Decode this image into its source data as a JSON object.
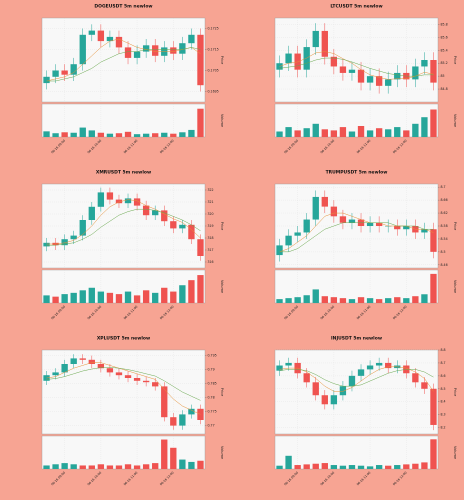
{
  "chart_data": [
    {
      "type": "candlestick",
      "title": "DOGEUSDT 5m newlow",
      "ylabel": "Price",
      "vlabel": "Volume",
      "up_color": "#26a69a",
      "down_color": "#ef5350",
      "grid": true,
      "categories": [
        null,
        null,
        "06-16 09:00",
        null,
        null,
        null,
        "06-16 10:00",
        null,
        null,
        null,
        "06-16 11:00",
        null,
        null,
        null,
        "06-16 12:00",
        null,
        null,
        null
      ],
      "open": [
        0.1699,
        0.1702,
        0.1705,
        0.1703,
        0.1708,
        0.1722,
        0.1724,
        0.1719,
        0.1721,
        0.1716,
        0.1711,
        0.1714,
        0.1717,
        0.1712,
        0.1716,
        0.1713,
        0.1718,
        0.1722
      ],
      "high": [
        0.1705,
        0.1708,
        0.1708,
        0.1711,
        0.1725,
        0.1727,
        0.1727,
        0.1724,
        0.1724,
        0.1719,
        0.1717,
        0.172,
        0.172,
        0.1719,
        0.1719,
        0.1721,
        0.1725,
        0.1725
      ],
      "low": [
        0.1696,
        0.1699,
        0.17,
        0.17,
        0.1705,
        0.1719,
        0.1716,
        0.1716,
        0.1713,
        0.1708,
        0.1708,
        0.1711,
        0.1709,
        0.1709,
        0.171,
        0.171,
        0.1715,
        0.1695
      ],
      "close": [
        0.1702,
        0.1705,
        0.1703,
        0.1708,
        0.1722,
        0.1724,
        0.1719,
        0.1721,
        0.1716,
        0.1711,
        0.1714,
        0.1717,
        0.1712,
        0.1716,
        0.1713,
        0.1718,
        0.1722,
        0.1698
      ],
      "volume": [
        12,
        8,
        10,
        9,
        20,
        14,
        9,
        7,
        8,
        11,
        6,
        7,
        8,
        9,
        7,
        10,
        15,
        60
      ],
      "lines": [
        {
          "color": "#e69138",
          "values": [
            0.17,
            0.1701,
            0.1702,
            0.1704,
            0.1708,
            0.1712,
            0.1716,
            0.1719,
            0.172,
            0.1718,
            0.1716,
            0.1715,
            0.1714,
            0.1714,
            0.1714,
            0.1715,
            0.1716,
            0.1713
          ]
        },
        {
          "color": "#6aa84f",
          "values": [
            0.17,
            0.17,
            0.1701,
            0.1702,
            0.1704,
            0.1706,
            0.1709,
            0.1711,
            0.1713,
            0.1714,
            0.1714,
            0.1715,
            0.1715,
            0.1715,
            0.1715,
            0.1715,
            0.1716,
            0.1715
          ]
        }
      ],
      "ylim": [
        0.169,
        0.173
      ],
      "yticks": [
        0.1695,
        0.1705,
        0.1715,
        0.1725
      ],
      "vlim": [
        0,
        70
      ]
    },
    {
      "type": "candlestick",
      "title": "LTCUSDT 5m newlow",
      "ylabel": "Price",
      "vlabel": "Volume",
      "up_color": "#26a69a",
      "down_color": "#ef5350",
      "grid": true,
      "categories": [
        null,
        null,
        "06-16 09:00",
        null,
        null,
        null,
        "06-16 10:00",
        null,
        null,
        null,
        "06-16 11:00",
        null,
        null,
        null,
        "06-16 12:00",
        null,
        null,
        null
      ],
      "open": [
        85.1,
        85.2,
        85.35,
        85.1,
        85.45,
        85.7,
        85.3,
        85.15,
        85.05,
        85.1,
        84.9,
        85.0,
        84.85,
        84.95,
        85.05,
        84.95,
        85.15,
        85.25
      ],
      "high": [
        85.32,
        85.47,
        85.47,
        85.57,
        85.82,
        85.82,
        85.42,
        85.27,
        85.22,
        85.22,
        85.12,
        85.12,
        85.07,
        85.17,
        85.17,
        85.27,
        85.37,
        85.37
      ],
      "low": [
        84.98,
        85.08,
        84.98,
        84.98,
        85.33,
        85.18,
        85.03,
        84.93,
        84.93,
        84.78,
        84.78,
        84.73,
        84.73,
        84.83,
        84.83,
        84.83,
        85.03,
        84.78
      ],
      "close": [
        85.2,
        85.35,
        85.1,
        85.45,
        85.7,
        85.3,
        85.15,
        85.05,
        85.1,
        84.9,
        85.0,
        84.85,
        84.95,
        85.05,
        84.95,
        85.15,
        85.25,
        84.9
      ],
      "volume": [
        5,
        9,
        6,
        8,
        12,
        7,
        6,
        9,
        5,
        10,
        6,
        8,
        7,
        9,
        6,
        12,
        18,
        25
      ],
      "lines": [
        {
          "color": "#e69138",
          "values": [
            85.15,
            85.2,
            85.22,
            85.28,
            85.36,
            85.38,
            85.35,
            85.27,
            85.2,
            85.1,
            85.02,
            84.98,
            84.95,
            84.96,
            84.96,
            85.0,
            85.06,
            85.03
          ]
        },
        {
          "color": "#6aa84f",
          "values": [
            85.12,
            85.14,
            85.16,
            85.2,
            85.25,
            85.28,
            85.28,
            85.26,
            85.22,
            85.17,
            85.12,
            85.08,
            85.04,
            85.02,
            85.0,
            85.0,
            85.02,
            85.02
          ]
        }
      ],
      "ylim": [
        84.6,
        85.9
      ],
      "yticks": [
        84.8,
        85,
        85.2,
        85.4,
        85.6,
        85.8
      ],
      "vlim": [
        0,
        30
      ]
    },
    {
      "type": "candlestick",
      "title": "XMRUSDT 5m newlow",
      "ylabel": "Price",
      "vlabel": "Volume",
      "up_color": "#26a69a",
      "down_color": "#ef5350",
      "grid": true,
      "categories": [
        null,
        null,
        "06-16 09:00",
        null,
        null,
        null,
        "06-16 10:00",
        null,
        null,
        null,
        "06-16 11:00",
        null,
        null,
        null,
        "06-16 12:00",
        null,
        null,
        null
      ],
      "open": [
        317.3,
        317.6,
        317.4,
        317.9,
        318.2,
        319.5,
        320.6,
        321.8,
        321.2,
        320.9,
        321.3,
        320.7,
        319.9,
        320.3,
        319.4,
        318.8,
        319.1,
        317.9
      ],
      "high": [
        318.0,
        318.0,
        318.3,
        318.6,
        319.9,
        321.0,
        322.2,
        322.2,
        321.6,
        321.7,
        321.7,
        321.1,
        320.7,
        320.7,
        319.8,
        319.5,
        319.5,
        318.3
      ],
      "low": [
        316.9,
        317.0,
        317.0,
        317.5,
        317.8,
        319.1,
        320.2,
        320.8,
        320.5,
        320.5,
        320.3,
        319.5,
        319.5,
        319.0,
        318.4,
        318.4,
        317.5,
        316.1
      ],
      "close": [
        317.6,
        317.4,
        317.9,
        318.2,
        319.5,
        320.6,
        321.8,
        321.2,
        320.9,
        321.3,
        320.7,
        319.9,
        320.3,
        319.4,
        318.8,
        319.1,
        317.9,
        316.5
      ],
      "volume": [
        6,
        5,
        7,
        8,
        10,
        12,
        9,
        8,
        7,
        9,
        6,
        10,
        8,
        12,
        9,
        14,
        18,
        22
      ],
      "lines": [
        {
          "color": "#e69138",
          "values": [
            317.5,
            317.5,
            317.6,
            317.8,
            318.3,
            319.0,
            319.9,
            320.6,
            321.0,
            321.2,
            321.1,
            320.7,
            320.4,
            320.0,
            319.6,
            319.3,
            318.7,
            318.0
          ]
        },
        {
          "color": "#6aa84f",
          "values": [
            317.4,
            317.4,
            317.5,
            317.6,
            317.9,
            318.3,
            318.9,
            319.4,
            319.9,
            320.2,
            320.4,
            320.4,
            320.3,
            320.1,
            319.8,
            319.5,
            319.1,
            318.6
          ]
        }
      ],
      "ylim": [
        315.5,
        322.5
      ],
      "yticks": [
        316,
        317,
        318,
        319,
        320,
        321,
        322
      ],
      "vlim": [
        0,
        26
      ]
    },
    {
      "type": "candlestick",
      "title": "TRUMPUSDT 5m newlow",
      "ylabel": "Price",
      "vlabel": "Volume",
      "up_color": "#26a69a",
      "down_color": "#ef5350",
      "grid": true,
      "categories": [
        null,
        null,
        "06-16 09:00",
        null,
        null,
        null,
        "06-16 10:00",
        null,
        null,
        null,
        "06-16 11:00",
        null,
        null,
        null,
        "06-16 12:00",
        null,
        null,
        null
      ],
      "open": [
        8.49,
        8.52,
        8.55,
        8.56,
        8.6,
        8.67,
        8.64,
        8.61,
        8.59,
        8.6,
        8.58,
        8.59,
        8.58,
        8.58,
        8.57,
        8.58,
        8.56,
        8.57
      ],
      "high": [
        8.54,
        8.57,
        8.58,
        8.62,
        8.69,
        8.69,
        8.66,
        8.63,
        8.62,
        8.62,
        8.61,
        8.61,
        8.6,
        8.6,
        8.6,
        8.6,
        8.59,
        8.59
      ],
      "low": [
        8.47,
        8.5,
        8.53,
        8.54,
        8.58,
        8.62,
        8.59,
        8.57,
        8.57,
        8.56,
        8.56,
        8.56,
        8.56,
        8.55,
        8.55,
        8.54,
        8.54,
        8.48
      ],
      "close": [
        8.52,
        8.55,
        8.56,
        8.6,
        8.67,
        8.64,
        8.61,
        8.59,
        8.6,
        8.58,
        8.59,
        8.58,
        8.58,
        8.57,
        8.58,
        8.56,
        8.57,
        8.5
      ],
      "volume": [
        4,
        5,
        6,
        8,
        14,
        7,
        6,
        5,
        4,
        6,
        5,
        4,
        5,
        6,
        5,
        7,
        9,
        30
      ],
      "lines": [
        {
          "color": "#e69138",
          "values": [
            8.5,
            8.51,
            8.53,
            8.55,
            8.58,
            8.61,
            8.62,
            8.62,
            8.61,
            8.6,
            8.59,
            8.59,
            8.58,
            8.58,
            8.58,
            8.57,
            8.57,
            8.56
          ]
        },
        {
          "color": "#6aa84f",
          "values": [
            8.5,
            8.5,
            8.51,
            8.53,
            8.55,
            8.57,
            8.58,
            8.59,
            8.59,
            8.59,
            8.59,
            8.59,
            8.59,
            8.58,
            8.58,
            8.58,
            8.57,
            8.57
          ]
        }
      ],
      "ylim": [
        8.45,
        8.71
      ],
      "yticks": [
        8.46,
        8.5,
        8.54,
        8.58,
        8.62,
        8.66,
        8.7
      ],
      "vlim": [
        0,
        34
      ]
    },
    {
      "type": "candlestick",
      "title": "XPLUSDT 5m newlow",
      "ylabel": "Price",
      "vlabel": "Volume",
      "up_color": "#26a69a",
      "down_color": "#ef5350",
      "grid": true,
      "categories": [
        null,
        null,
        "06-16 09:00",
        null,
        null,
        null,
        "06-16 10:00",
        null,
        null,
        null,
        "06-16 11:00",
        null,
        null,
        null,
        "06-16 12:00",
        null,
        null,
        null
      ],
      "open": [
        0.786,
        0.788,
        0.789,
        0.792,
        0.794,
        0.7935,
        0.792,
        0.7905,
        0.789,
        0.788,
        0.787,
        0.786,
        0.7855,
        0.784,
        0.773,
        0.77,
        0.774,
        0.776
      ],
      "high": [
        0.7895,
        0.7905,
        0.7935,
        0.7955,
        0.7955,
        0.795,
        0.7935,
        0.792,
        0.7905,
        0.7895,
        0.7885,
        0.7875,
        0.787,
        0.7855,
        0.7745,
        0.7755,
        0.7775,
        0.7775
      ],
      "low": [
        0.7845,
        0.7865,
        0.7875,
        0.7905,
        0.792,
        0.7905,
        0.789,
        0.7875,
        0.7865,
        0.7855,
        0.7845,
        0.784,
        0.7825,
        0.7715,
        0.7685,
        0.7685,
        0.7725,
        0.7705
      ],
      "close": [
        0.788,
        0.789,
        0.792,
        0.794,
        0.7935,
        0.792,
        0.7905,
        0.789,
        0.788,
        0.787,
        0.786,
        0.7855,
        0.784,
        0.773,
        0.77,
        0.774,
        0.776,
        0.772
      ],
      "volume": [
        3,
        4,
        5,
        4,
        3,
        3,
        4,
        3,
        3,
        4,
        3,
        4,
        5,
        25,
        18,
        8,
        6,
        7
      ],
      "lines": [
        {
          "color": "#e69138",
          "values": [
            0.787,
            0.7875,
            0.789,
            0.7905,
            0.7915,
            0.7925,
            0.7925,
            0.7915,
            0.7905,
            0.7895,
            0.7885,
            0.7875,
            0.7865,
            0.783,
            0.7795,
            0.777,
            0.7755,
            0.774
          ]
        },
        {
          "color": "#6aa84f",
          "values": [
            0.7865,
            0.7868,
            0.7875,
            0.7885,
            0.7895,
            0.7902,
            0.7907,
            0.7908,
            0.7905,
            0.79,
            0.7893,
            0.7885,
            0.7877,
            0.786,
            0.784,
            0.782,
            0.7805,
            0.779
          ]
        }
      ],
      "ylim": [
        0.767,
        0.797
      ],
      "yticks": [
        0.77,
        0.775,
        0.78,
        0.785,
        0.79,
        0.795
      ],
      "vlim": [
        0,
        28
      ]
    },
    {
      "type": "candlestick",
      "title": "INJUSDT 5m newlow",
      "ylabel": "Price",
      "vlabel": "Volume",
      "up_color": "#26a69a",
      "down_color": "#ef5350",
      "grid": true,
      "categories": [
        null,
        null,
        "06-16 09:00",
        null,
        null,
        null,
        "06-16 10:00",
        null,
        null,
        null,
        "06-16 11:00",
        null,
        null,
        null,
        "06-16 12:00",
        null,
        null,
        null
      ],
      "open": [
        8.64,
        8.68,
        8.7,
        8.62,
        8.55,
        8.45,
        8.38,
        8.45,
        8.52,
        8.6,
        8.65,
        8.68,
        8.7,
        8.66,
        8.68,
        8.62,
        8.55,
        8.5
      ],
      "high": [
        8.72,
        8.74,
        8.74,
        8.66,
        8.59,
        8.49,
        8.49,
        8.56,
        8.64,
        8.69,
        8.72,
        8.74,
        8.74,
        8.72,
        8.72,
        8.66,
        8.59,
        8.54
      ],
      "low": [
        8.6,
        8.64,
        8.58,
        8.51,
        8.41,
        8.34,
        8.34,
        8.41,
        8.48,
        8.56,
        8.61,
        8.64,
        8.62,
        8.62,
        8.58,
        8.51,
        8.46,
        8.18
      ],
      "close": [
        8.68,
        8.7,
        8.62,
        8.55,
        8.45,
        8.38,
        8.45,
        8.52,
        8.6,
        8.65,
        8.68,
        8.7,
        8.66,
        8.68,
        8.62,
        8.55,
        8.5,
        8.22
      ],
      "volume": [
        5,
        20,
        6,
        7,
        8,
        9,
        6,
        5,
        6,
        5,
        4,
        6,
        5,
        6,
        7,
        8,
        10,
        45
      ],
      "lines": [
        {
          "color": "#e69138",
          "values": [
            8.65,
            8.66,
            8.66,
            8.63,
            8.58,
            8.52,
            8.48,
            8.48,
            8.51,
            8.56,
            8.61,
            8.65,
            8.67,
            8.67,
            8.66,
            8.63,
            8.58,
            8.48
          ]
        },
        {
          "color": "#6aa84f",
          "values": [
            8.64,
            8.65,
            8.65,
            8.64,
            8.61,
            8.57,
            8.54,
            8.52,
            8.52,
            8.53,
            8.56,
            8.59,
            8.62,
            8.64,
            8.65,
            8.65,
            8.63,
            8.59
          ]
        }
      ],
      "ylim": [
        8.15,
        8.8
      ],
      "yticks": [
        8.2,
        8.3,
        8.4,
        8.5,
        8.6,
        8.7,
        8.8
      ],
      "vlim": [
        0,
        50
      ]
    }
  ]
}
